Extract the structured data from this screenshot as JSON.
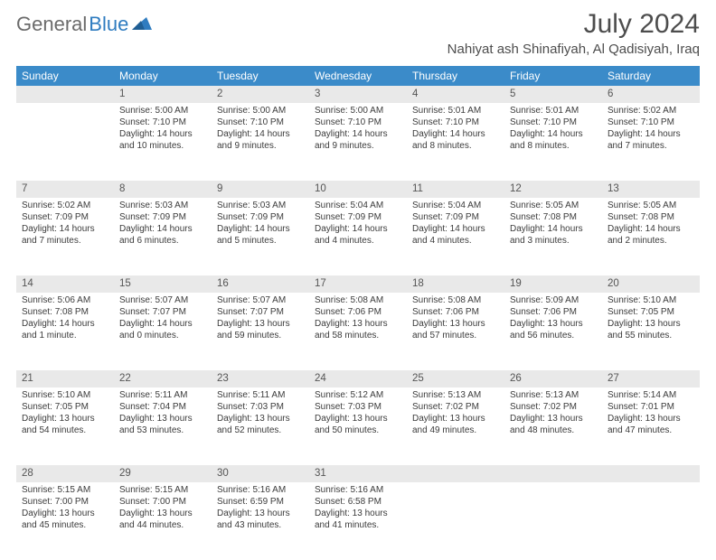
{
  "brand": {
    "name1": "General",
    "name2": "Blue"
  },
  "title": {
    "month": "July 2024",
    "location": "Nahiyat ash Shinafiyah, Al Qadisiyah, Iraq"
  },
  "weekdays": [
    "Sunday",
    "Monday",
    "Tuesday",
    "Wednesday",
    "Thursday",
    "Friday",
    "Saturday"
  ],
  "colors": {
    "header_bg": "#3b8bc9",
    "header_fg": "#ffffff",
    "daynum_bg": "#e9e9e9",
    "text": "#3b3b3b",
    "title": "#4d4d4d",
    "logo_gray": "#6b6b6b",
    "logo_blue": "#2f7cc0"
  },
  "weeks": [
    {
      "nums": [
        "",
        "1",
        "2",
        "3",
        "4",
        "5",
        "6"
      ],
      "cells": [
        {},
        {
          "sr": "Sunrise: 5:00 AM",
          "ss": "Sunset: 7:10 PM",
          "d1": "Daylight: 14 hours",
          "d2": "and 10 minutes."
        },
        {
          "sr": "Sunrise: 5:00 AM",
          "ss": "Sunset: 7:10 PM",
          "d1": "Daylight: 14 hours",
          "d2": "and 9 minutes."
        },
        {
          "sr": "Sunrise: 5:00 AM",
          "ss": "Sunset: 7:10 PM",
          "d1": "Daylight: 14 hours",
          "d2": "and 9 minutes."
        },
        {
          "sr": "Sunrise: 5:01 AM",
          "ss": "Sunset: 7:10 PM",
          "d1": "Daylight: 14 hours",
          "d2": "and 8 minutes."
        },
        {
          "sr": "Sunrise: 5:01 AM",
          "ss": "Sunset: 7:10 PM",
          "d1": "Daylight: 14 hours",
          "d2": "and 8 minutes."
        },
        {
          "sr": "Sunrise: 5:02 AM",
          "ss": "Sunset: 7:10 PM",
          "d1": "Daylight: 14 hours",
          "d2": "and 7 minutes."
        }
      ]
    },
    {
      "nums": [
        "7",
        "8",
        "9",
        "10",
        "11",
        "12",
        "13"
      ],
      "cells": [
        {
          "sr": "Sunrise: 5:02 AM",
          "ss": "Sunset: 7:09 PM",
          "d1": "Daylight: 14 hours",
          "d2": "and 7 minutes."
        },
        {
          "sr": "Sunrise: 5:03 AM",
          "ss": "Sunset: 7:09 PM",
          "d1": "Daylight: 14 hours",
          "d2": "and 6 minutes."
        },
        {
          "sr": "Sunrise: 5:03 AM",
          "ss": "Sunset: 7:09 PM",
          "d1": "Daylight: 14 hours",
          "d2": "and 5 minutes."
        },
        {
          "sr": "Sunrise: 5:04 AM",
          "ss": "Sunset: 7:09 PM",
          "d1": "Daylight: 14 hours",
          "d2": "and 4 minutes."
        },
        {
          "sr": "Sunrise: 5:04 AM",
          "ss": "Sunset: 7:09 PM",
          "d1": "Daylight: 14 hours",
          "d2": "and 4 minutes."
        },
        {
          "sr": "Sunrise: 5:05 AM",
          "ss": "Sunset: 7:08 PM",
          "d1": "Daylight: 14 hours",
          "d2": "and 3 minutes."
        },
        {
          "sr": "Sunrise: 5:05 AM",
          "ss": "Sunset: 7:08 PM",
          "d1": "Daylight: 14 hours",
          "d2": "and 2 minutes."
        }
      ]
    },
    {
      "nums": [
        "14",
        "15",
        "16",
        "17",
        "18",
        "19",
        "20"
      ],
      "cells": [
        {
          "sr": "Sunrise: 5:06 AM",
          "ss": "Sunset: 7:08 PM",
          "d1": "Daylight: 14 hours",
          "d2": "and 1 minute."
        },
        {
          "sr": "Sunrise: 5:07 AM",
          "ss": "Sunset: 7:07 PM",
          "d1": "Daylight: 14 hours",
          "d2": "and 0 minutes."
        },
        {
          "sr": "Sunrise: 5:07 AM",
          "ss": "Sunset: 7:07 PM",
          "d1": "Daylight: 13 hours",
          "d2": "and 59 minutes."
        },
        {
          "sr": "Sunrise: 5:08 AM",
          "ss": "Sunset: 7:06 PM",
          "d1": "Daylight: 13 hours",
          "d2": "and 58 minutes."
        },
        {
          "sr": "Sunrise: 5:08 AM",
          "ss": "Sunset: 7:06 PM",
          "d1": "Daylight: 13 hours",
          "d2": "and 57 minutes."
        },
        {
          "sr": "Sunrise: 5:09 AM",
          "ss": "Sunset: 7:06 PM",
          "d1": "Daylight: 13 hours",
          "d2": "and 56 minutes."
        },
        {
          "sr": "Sunrise: 5:10 AM",
          "ss": "Sunset: 7:05 PM",
          "d1": "Daylight: 13 hours",
          "d2": "and 55 minutes."
        }
      ]
    },
    {
      "nums": [
        "21",
        "22",
        "23",
        "24",
        "25",
        "26",
        "27"
      ],
      "cells": [
        {
          "sr": "Sunrise: 5:10 AM",
          "ss": "Sunset: 7:05 PM",
          "d1": "Daylight: 13 hours",
          "d2": "and 54 minutes."
        },
        {
          "sr": "Sunrise: 5:11 AM",
          "ss": "Sunset: 7:04 PM",
          "d1": "Daylight: 13 hours",
          "d2": "and 53 minutes."
        },
        {
          "sr": "Sunrise: 5:11 AM",
          "ss": "Sunset: 7:03 PM",
          "d1": "Daylight: 13 hours",
          "d2": "and 52 minutes."
        },
        {
          "sr": "Sunrise: 5:12 AM",
          "ss": "Sunset: 7:03 PM",
          "d1": "Daylight: 13 hours",
          "d2": "and 50 minutes."
        },
        {
          "sr": "Sunrise: 5:13 AM",
          "ss": "Sunset: 7:02 PM",
          "d1": "Daylight: 13 hours",
          "d2": "and 49 minutes."
        },
        {
          "sr": "Sunrise: 5:13 AM",
          "ss": "Sunset: 7:02 PM",
          "d1": "Daylight: 13 hours",
          "d2": "and 48 minutes."
        },
        {
          "sr": "Sunrise: 5:14 AM",
          "ss": "Sunset: 7:01 PM",
          "d1": "Daylight: 13 hours",
          "d2": "and 47 minutes."
        }
      ]
    },
    {
      "nums": [
        "28",
        "29",
        "30",
        "31",
        "",
        "",
        ""
      ],
      "cells": [
        {
          "sr": "Sunrise: 5:15 AM",
          "ss": "Sunset: 7:00 PM",
          "d1": "Daylight: 13 hours",
          "d2": "and 45 minutes."
        },
        {
          "sr": "Sunrise: 5:15 AM",
          "ss": "Sunset: 7:00 PM",
          "d1": "Daylight: 13 hours",
          "d2": "and 44 minutes."
        },
        {
          "sr": "Sunrise: 5:16 AM",
          "ss": "Sunset: 6:59 PM",
          "d1": "Daylight: 13 hours",
          "d2": "and 43 minutes."
        },
        {
          "sr": "Sunrise: 5:16 AM",
          "ss": "Sunset: 6:58 PM",
          "d1": "Daylight: 13 hours",
          "d2": "and 41 minutes."
        },
        {},
        {},
        {}
      ]
    }
  ]
}
